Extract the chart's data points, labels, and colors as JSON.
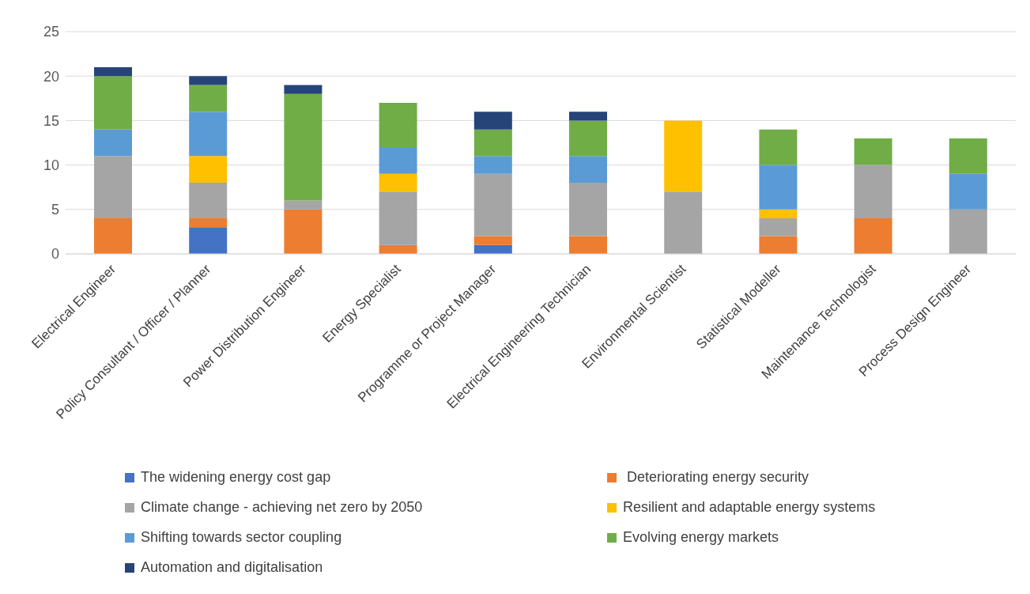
{
  "chart_data": {
    "type": "bar",
    "stacked": true,
    "categories": [
      "Electrical Engineer",
      "Policy Consultant / Officer / Planner",
      "Power Distribution Engineer",
      "Energy Specialist",
      "Programme or Project Manager",
      "Electrical Engineering Technician",
      "Environmental Scientist",
      "Statistical Modeller",
      "Maintenance Technologist",
      "Process Design Engineer"
    ],
    "series": [
      {
        "name": "The widening energy cost gap",
        "color": "#4472c4",
        "values": [
          0,
          3,
          0,
          0,
          1,
          0,
          0,
          0,
          0,
          0
        ]
      },
      {
        "name": " Deteriorating energy security",
        "color": "#ed7d31",
        "values": [
          4,
          1,
          5,
          1,
          1,
          2,
          0,
          2,
          4,
          0
        ]
      },
      {
        "name": "Climate change - achieving net zero by 2050",
        "color": "#a5a5a5",
        "values": [
          7,
          4,
          1,
          6,
          7,
          6,
          7,
          2,
          6,
          5
        ]
      },
      {
        "name": "Resilient and adaptable energy systems",
        "color": "#ffc000",
        "values": [
          0,
          3,
          0,
          2,
          0,
          0,
          8,
          1,
          0,
          0
        ]
      },
      {
        "name": "Shifting towards sector coupling",
        "color": "#5b9bd5",
        "values": [
          3,
          5,
          0,
          3,
          2,
          3,
          0,
          5,
          0,
          4
        ]
      },
      {
        "name": "Evolving energy markets",
        "color": "#70ad47",
        "values": [
          6,
          3,
          12,
          5,
          3,
          4,
          0,
          4,
          3,
          4
        ]
      },
      {
        "name": "Automation and digitalisation",
        "color": "#264478",
        "values": [
          1,
          1,
          1,
          0,
          2,
          1,
          0,
          0,
          0,
          0
        ]
      }
    ],
    "ylim": [
      0,
      25
    ],
    "yticks": [
      0,
      5,
      10,
      15,
      20,
      25
    ],
    "grid": "y",
    "legend": "bottom"
  }
}
